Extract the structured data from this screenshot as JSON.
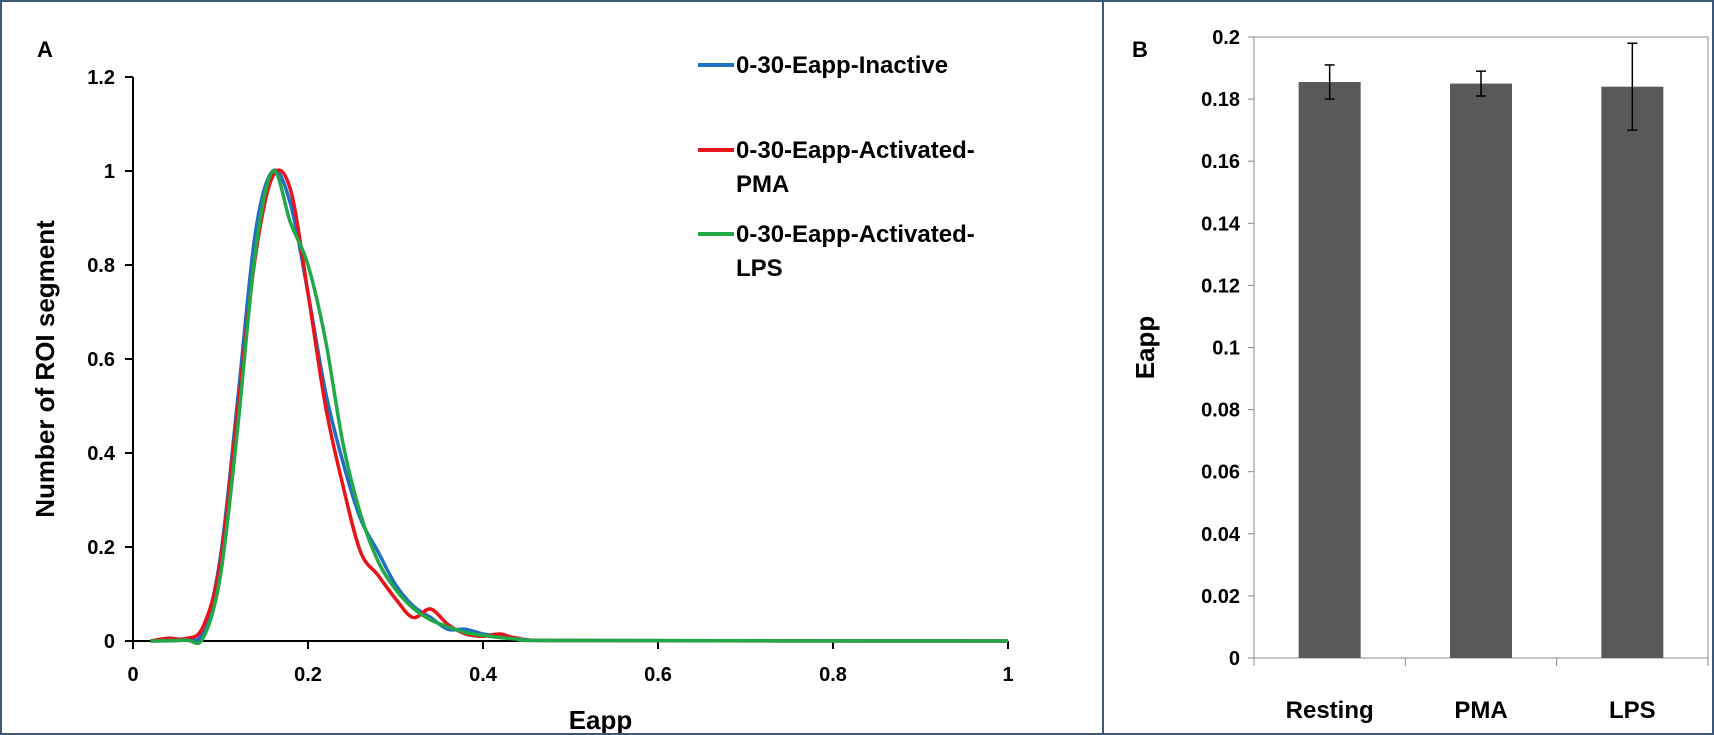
{
  "chart_data": [
    {
      "panel_label": "A",
      "type": "line",
      "xlabel": "Eapp",
      "ylabel": "Number of ROI segment",
      "xlim": [
        0,
        1
      ],
      "ylim": [
        0,
        1.2
      ],
      "xticks": [
        "0",
        "0.2",
        "0.4",
        "0.6",
        "0.8",
        "1"
      ],
      "yticks": [
        "0",
        "0.2",
        "0.4",
        "0.6",
        "0.8",
        "1",
        "1.2"
      ],
      "grid": false,
      "legend_position": "top-right",
      "series": [
        {
          "name": "0-30-Eapp-Inactive",
          "color": "#1f6fc5",
          "points": [
            [
              0.02,
              0
            ],
            [
              0.06,
              0.003
            ],
            [
              0.08,
              0.02
            ],
            [
              0.1,
              0.18
            ],
            [
              0.12,
              0.52
            ],
            [
              0.14,
              0.87
            ],
            [
              0.16,
              1.0
            ],
            [
              0.18,
              0.93
            ],
            [
              0.2,
              0.74
            ],
            [
              0.22,
              0.53
            ],
            [
              0.24,
              0.38
            ],
            [
              0.26,
              0.26
            ],
            [
              0.28,
              0.19
            ],
            [
              0.3,
              0.12
            ],
            [
              0.32,
              0.075
            ],
            [
              0.34,
              0.05
            ],
            [
              0.36,
              0.025
            ],
            [
              0.38,
              0.025
            ],
            [
              0.4,
              0.015
            ],
            [
              0.42,
              0.01
            ],
            [
              0.45,
              0.003
            ],
            [
              0.5,
              0.001
            ],
            [
              1.0,
              0
            ]
          ]
        },
        {
          "name": "0-30-Eapp-Activated-PMA",
          "color": "#e8141c",
          "points": [
            [
              0.02,
              0
            ],
            [
              0.04,
              0.006
            ],
            [
              0.06,
              0.005
            ],
            [
              0.08,
              0.03
            ],
            [
              0.1,
              0.17
            ],
            [
              0.12,
              0.5
            ],
            [
              0.14,
              0.82
            ],
            [
              0.16,
              0.99
            ],
            [
              0.18,
              0.96
            ],
            [
              0.2,
              0.74
            ],
            [
              0.22,
              0.5
            ],
            [
              0.24,
              0.33
            ],
            [
              0.26,
              0.19
            ],
            [
              0.28,
              0.14
            ],
            [
              0.3,
              0.09
            ],
            [
              0.32,
              0.05
            ],
            [
              0.34,
              0.068
            ],
            [
              0.36,
              0.035
            ],
            [
              0.38,
              0.015
            ],
            [
              0.4,
              0.01
            ],
            [
              0.42,
              0.015
            ],
            [
              0.44,
              0.006
            ],
            [
              0.5,
              0.001
            ],
            [
              1.0,
              0
            ]
          ]
        },
        {
          "name": "0-30-Eapp-Activated-LPS",
          "color": "#21a847",
          "points": [
            [
              0.02,
              0
            ],
            [
              0.06,
              0.002
            ],
            [
              0.08,
              0.006
            ],
            [
              0.1,
              0.14
            ],
            [
              0.12,
              0.46
            ],
            [
              0.14,
              0.83
            ],
            [
              0.16,
              1.0
            ],
            [
              0.18,
              0.89
            ],
            [
              0.2,
              0.8
            ],
            [
              0.22,
              0.64
            ],
            [
              0.24,
              0.42
            ],
            [
              0.26,
              0.27
            ],
            [
              0.28,
              0.17
            ],
            [
              0.3,
              0.11
            ],
            [
              0.32,
              0.07
            ],
            [
              0.34,
              0.045
            ],
            [
              0.36,
              0.03
            ],
            [
              0.38,
              0.018
            ],
            [
              0.4,
              0.012
            ],
            [
              0.44,
              0.004
            ],
            [
              0.5,
              0.001
            ],
            [
              1.0,
              0
            ]
          ]
        }
      ]
    },
    {
      "panel_label": "B",
      "type": "bar",
      "xlabel": "",
      "ylabel": "Eapp",
      "ylim": [
        0,
        0.2
      ],
      "yticks": [
        "0",
        "0.02",
        "0.04",
        "0.06",
        "0.08",
        "0.1",
        "0.12",
        "0.14",
        "0.16",
        "0.18",
        "0.2"
      ],
      "grid": false,
      "categories": [
        "Resting",
        "PMA",
        "LPS"
      ],
      "values": [
        0.1855,
        0.185,
        0.184
      ],
      "errors": [
        0.0055,
        0.004,
        0.014
      ],
      "bar_color": "#595959"
    }
  ]
}
